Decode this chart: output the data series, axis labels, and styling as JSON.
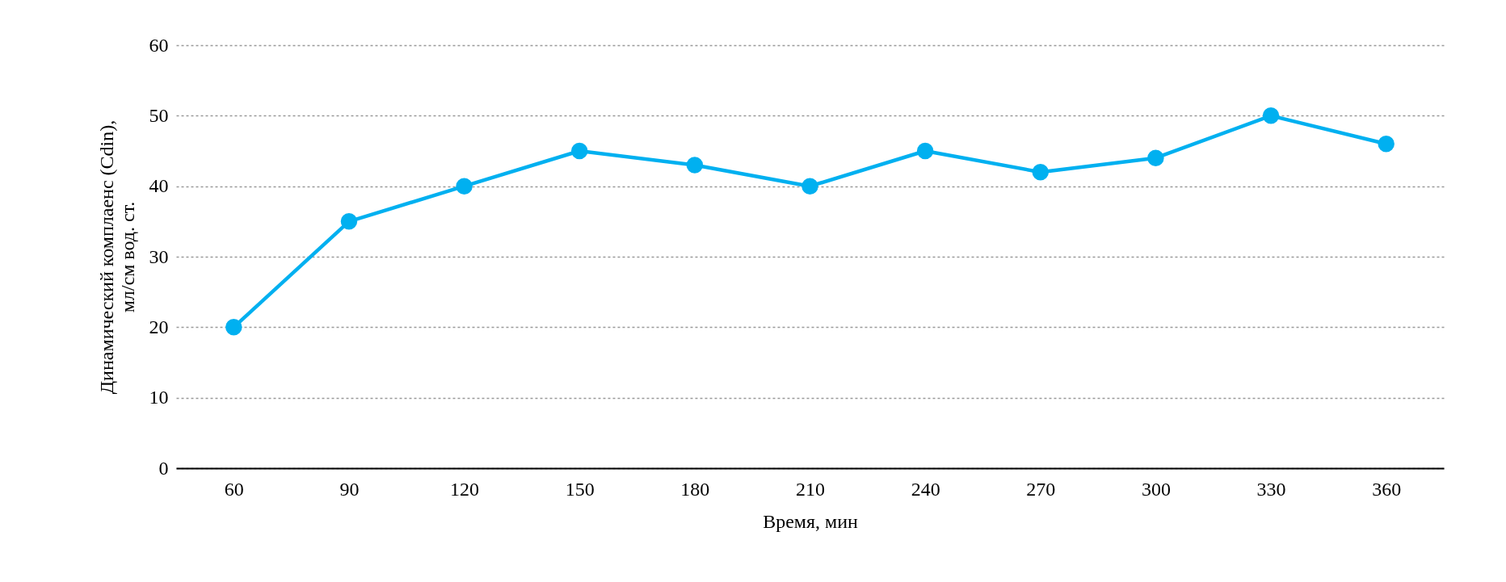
{
  "chart_data": {
    "type": "line",
    "xlabel": "Время, мин",
    "ylabel": "Динамический комплаенс (Cdin),\nмл/см вод. ст.",
    "categories": [
      "60",
      "90",
      "120",
      "150",
      "180",
      "210",
      "240",
      "270",
      "300",
      "330",
      "360"
    ],
    "series": [
      {
        "color": "#00b0f0",
        "values": [
          20,
          35,
          40,
          45,
          43,
          40,
          45,
          42,
          44,
          50,
          46
        ]
      }
    ],
    "ylim": [
      0,
      60
    ],
    "yticks": [
      0,
      10,
      20,
      30,
      40,
      50,
      60
    ],
    "grid": "y",
    "marker": "circle",
    "line_style": "solid"
  }
}
